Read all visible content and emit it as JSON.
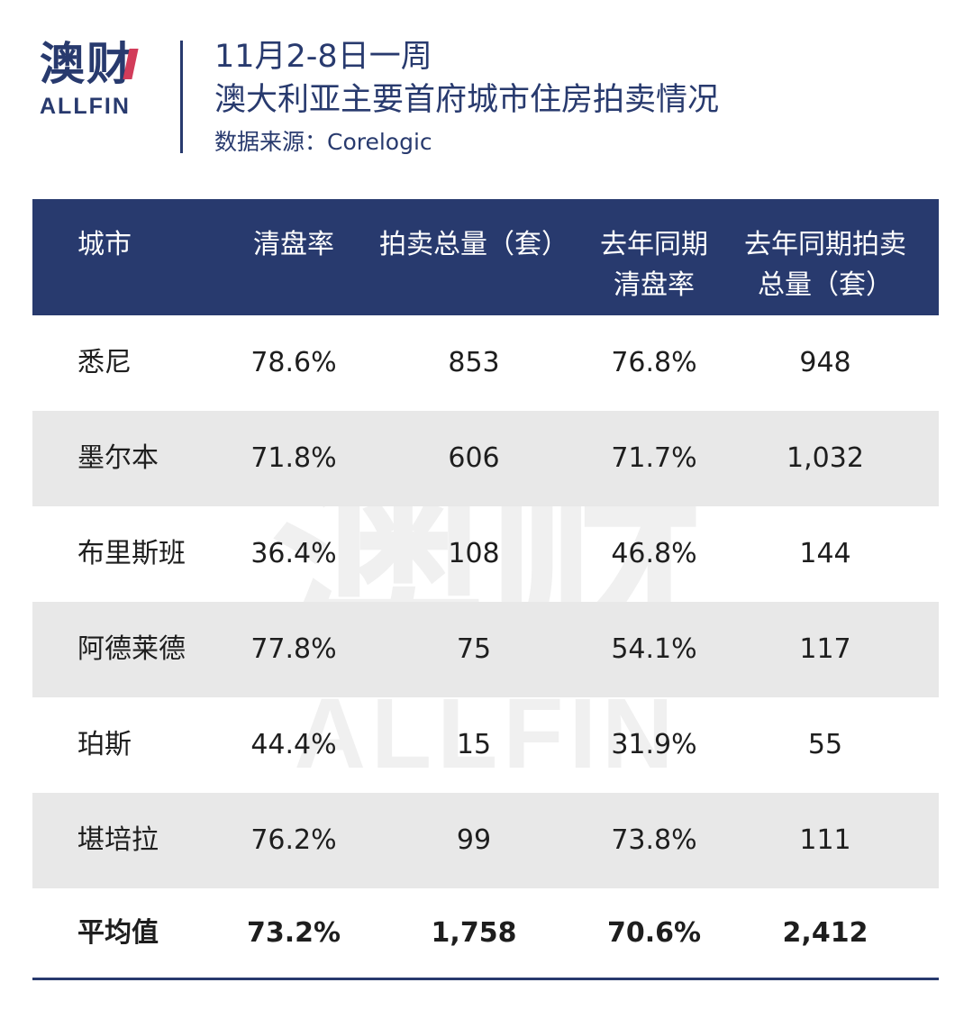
{
  "logo": {
    "cn": "澳财",
    "en": "ALLFIN"
  },
  "header": {
    "title_line1": "11月2-8日一周",
    "title_line2": "澳大利亚主要首府城市住房拍卖情况",
    "source": "数据来源：Corelogic"
  },
  "colors": {
    "header_bg": "#283a6e",
    "stripe": "#e8e8e8",
    "accent": "#d23c5a"
  },
  "chart_data": {
    "type": "table",
    "columns": [
      "城市",
      "清盘率",
      "拍卖总量（套）",
      "去年同期清盘率",
      "去年同期拍卖总量（套）"
    ],
    "column_display": [
      [
        "城市"
      ],
      [
        "清盘率"
      ],
      [
        "拍卖总量（套）"
      ],
      [
        "去年同期",
        "清盘率"
      ],
      [
        "去年同期拍卖",
        "总量（套）"
      ]
    ],
    "rows": [
      [
        "悉尼",
        "78.6%",
        "853",
        "76.8%",
        "948"
      ],
      [
        "墨尔本",
        "71.8%",
        "606",
        "71.7%",
        "1,032"
      ],
      [
        "布里斯班",
        "36.4%",
        "108",
        "46.8%",
        "144"
      ],
      [
        "阿德莱德",
        "77.8%",
        "75",
        "54.1%",
        "117"
      ],
      [
        "珀斯",
        "44.4%",
        "15",
        "31.9%",
        "55"
      ],
      [
        "堪培拉",
        "76.2%",
        "99",
        "73.8%",
        "111"
      ]
    ],
    "total": [
      "平均值",
      "73.2%",
      "1,758",
      "70.6%",
      "2,412"
    ]
  }
}
